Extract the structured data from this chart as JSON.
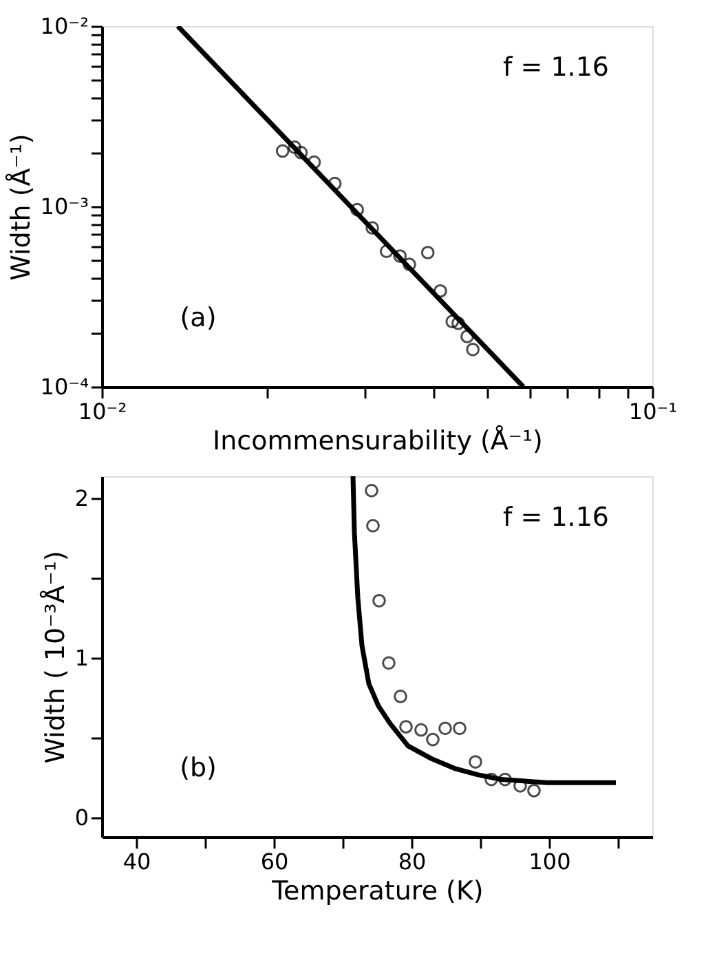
{
  "chart_data": [
    {
      "type": "scatter",
      "xlabel": "Incommensurability (Å⁻¹)",
      "ylabel": "Width (Å⁻¹)",
      "log": "xy",
      "marker": "circle",
      "grid": false,
      "xlim": [
        0.01,
        0.1
      ],
      "ylim": [
        0.0001,
        0.01
      ],
      "xticks": [
        {
          "value": 0.01,
          "label": "10⁻²"
        },
        {
          "value": 0.02,
          "label": null
        },
        {
          "value": 0.03,
          "label": null
        },
        {
          "value": 0.04,
          "label": null
        },
        {
          "value": 0.05,
          "label": null
        },
        {
          "value": 0.06,
          "label": null
        },
        {
          "value": 0.07,
          "label": null
        },
        {
          "value": 0.08,
          "label": null
        },
        {
          "value": 0.09,
          "label": null
        },
        {
          "value": 0.1,
          "label": "10⁻¹"
        }
      ],
      "yticks": [
        {
          "value": 0.0001,
          "label": "10⁻⁴"
        },
        {
          "value": 0.0002,
          "label": null
        },
        {
          "value": 0.0003,
          "label": null
        },
        {
          "value": 0.0004,
          "label": null
        },
        {
          "value": 0.0005,
          "label": null
        },
        {
          "value": 0.0006,
          "label": null
        },
        {
          "value": 0.0007,
          "label": null
        },
        {
          "value": 0.0008,
          "label": null
        },
        {
          "value": 0.0009,
          "label": null
        },
        {
          "value": 0.001,
          "label": "10⁻³"
        },
        {
          "value": 0.002,
          "label": null
        },
        {
          "value": 0.003,
          "label": null
        },
        {
          "value": 0.004,
          "label": null
        },
        {
          "value": 0.005,
          "label": null
        },
        {
          "value": 0.006,
          "label": null
        },
        {
          "value": 0.007,
          "label": null
        },
        {
          "value": 0.008,
          "label": null
        },
        {
          "value": 0.009,
          "label": null
        },
        {
          "value": 0.01,
          "label": "10⁻²"
        }
      ],
      "annotations": [
        "f = 1.16",
        "(a)"
      ],
      "series": [
        {
          "color": "#000000",
          "x": [
            0.0213,
            0.0224,
            0.023,
            0.0243,
            0.0265,
            0.0291,
            0.031,
            0.0329,
            0.0348,
            0.0362,
            0.0391,
            0.0412,
            0.0433,
            0.0444,
            0.0461,
            0.0472
          ],
          "values": [
            0.00203,
            0.00213,
            0.00199,
            0.00176,
            0.00134,
            0.00096,
            0.00076,
            0.000564,
            0.000531,
            0.000477,
            0.000555,
            0.00034,
            0.00023,
            0.000225,
            0.00019,
            0.000161
          ]
        },
        {
          "type": "line",
          "color": "#000000",
          "marker": "none",
          "x": [
            0.01374,
            0.0583
          ],
          "values": [
            0.01,
            0.0001
          ]
        }
      ]
    },
    {
      "type": "scatter",
      "xlabel": "Temperature (K)",
      "ylabel": "Width ( 10⁻³Å⁻¹)",
      "marker": "circle",
      "grid": false,
      "xlim": [
        35,
        115
      ],
      "ylim": [
        -0.12,
        2.14
      ],
      "xticks": [
        40,
        {
          "value": 50,
          "label": null
        },
        60,
        {
          "value": 70,
          "label": null
        },
        80,
        {
          "value": 90,
          "label": null
        },
        100,
        {
          "value": 110,
          "label": null
        }
      ],
      "yticks": [
        0,
        {
          "value": 0.5,
          "label": null
        },
        1,
        {
          "value": 1.5,
          "label": null
        },
        2
      ],
      "annotations": [
        "f = 1.16",
        "(b)"
      ],
      "series": [
        {
          "color": "#000000",
          "x": [
            74.2,
            74.4,
            75.3,
            76.7,
            78.4,
            79.2,
            81.4,
            83.1,
            84.9,
            87.0,
            89.3,
            91.6,
            93.6,
            95.8,
            97.8
          ],
          "values": [
            2.05,
            1.83,
            1.36,
            0.97,
            0.76,
            0.57,
            0.55,
            0.49,
            0.56,
            0.56,
            0.35,
            0.24,
            0.24,
            0.2,
            0.17
          ]
        },
        {
          "type": "line",
          "color": "#000000",
          "marker": "none",
          "x": [
            71.5,
            71.7,
            72.2,
            72.8,
            73.8,
            75.2,
            76.9,
            79.5,
            82.9,
            86.2,
            89.6,
            93.0,
            99.7,
            109.7
          ],
          "values": [
            2.14,
            1.79,
            1.38,
            1.08,
            0.84,
            0.7,
            0.59,
            0.45,
            0.37,
            0.31,
            0.27,
            0.24,
            0.22,
            0.22
          ]
        }
      ]
    }
  ]
}
